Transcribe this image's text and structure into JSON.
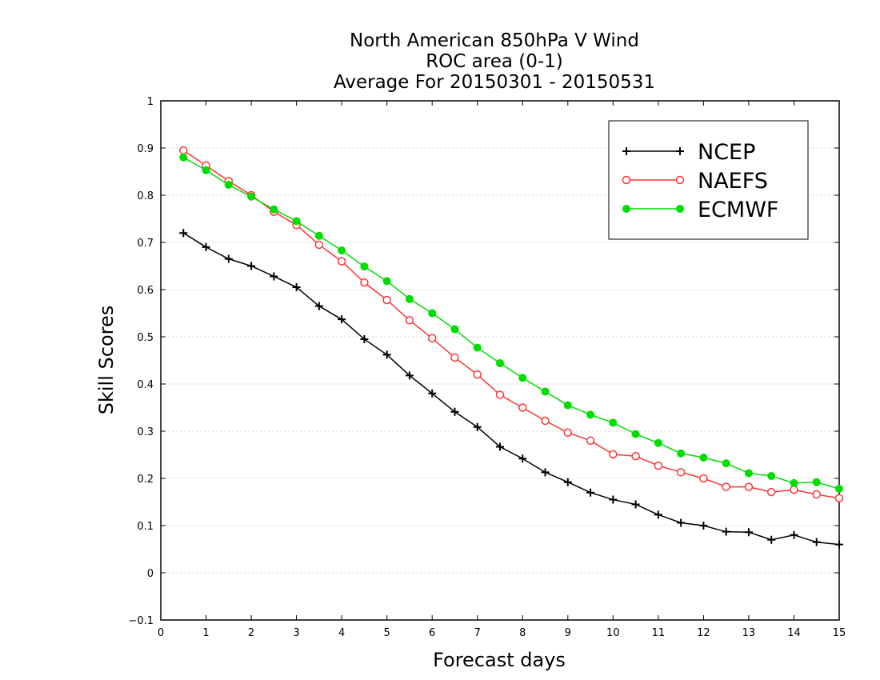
{
  "chart_data": {
    "type": "line",
    "title": [
      "North American 850hPa V Wind",
      "ROC area (0-1)",
      "Average For 20150301 - 20150531"
    ],
    "xlabel": "Forecast days",
    "ylabel": "Skill Scores",
    "xlim": [
      0,
      15
    ],
    "ylim": [
      -0.1,
      1
    ],
    "xticks": [
      "0",
      "1",
      "2",
      "3",
      "4",
      "5",
      "6",
      "7",
      "8",
      "9",
      "10",
      "11",
      "12",
      "13",
      "14",
      "15"
    ],
    "yticks": [
      "−0.1",
      "0",
      "0.1",
      "0.2",
      "0.3",
      "0.4",
      "0.5",
      "0.6",
      "0.7",
      "0.8",
      "0.9",
      "1"
    ],
    "grid": "horizontal dotted",
    "legend_position": "top-right",
    "x": [
      0.5,
      1,
      1.5,
      2,
      2.5,
      3,
      3.5,
      4,
      4.5,
      5,
      5.5,
      6,
      6.5,
      7,
      7.5,
      8,
      8.5,
      9,
      9.5,
      10,
      10.5,
      11,
      11.5,
      12,
      12.5,
      13,
      13.5,
      14,
      14.5,
      15
    ],
    "series": [
      {
        "name": "NCEP",
        "color": "#000000",
        "marker": "plus",
        "values": [
          0.72,
          0.69,
          0.665,
          0.65,
          0.628,
          0.605,
          0.565,
          0.537,
          0.495,
          0.462,
          0.418,
          0.38,
          0.341,
          0.309,
          0.267,
          0.242,
          0.213,
          0.192,
          0.17,
          0.155,
          0.145,
          0.123,
          0.106,
          0.1,
          0.087,
          0.086,
          0.07,
          0.08,
          0.065,
          0.06
        ]
      },
      {
        "name": "NAEFS",
        "color": "#ff3333",
        "marker": "open-circle",
        "values": [
          0.895,
          0.863,
          0.83,
          0.8,
          0.765,
          0.737,
          0.695,
          0.66,
          0.615,
          0.578,
          0.535,
          0.497,
          0.456,
          0.42,
          0.377,
          0.35,
          0.322,
          0.297,
          0.28,
          0.251,
          0.247,
          0.227,
          0.213,
          0.2,
          0.182,
          0.182,
          0.171,
          0.176,
          0.166,
          0.158
        ]
      },
      {
        "name": "ECMWF",
        "color": "#00dd00",
        "marker": "filled-circle",
        "values": [
          0.88,
          0.853,
          0.822,
          0.797,
          0.77,
          0.745,
          0.714,
          0.683,
          0.649,
          0.618,
          0.58,
          0.55,
          0.516,
          0.477,
          0.444,
          0.413,
          0.384,
          0.355,
          0.335,
          0.318,
          0.294,
          0.275,
          0.253,
          0.244,
          0.232,
          0.211,
          0.205,
          0.19,
          0.192,
          0.178
        ]
      }
    ]
  }
}
